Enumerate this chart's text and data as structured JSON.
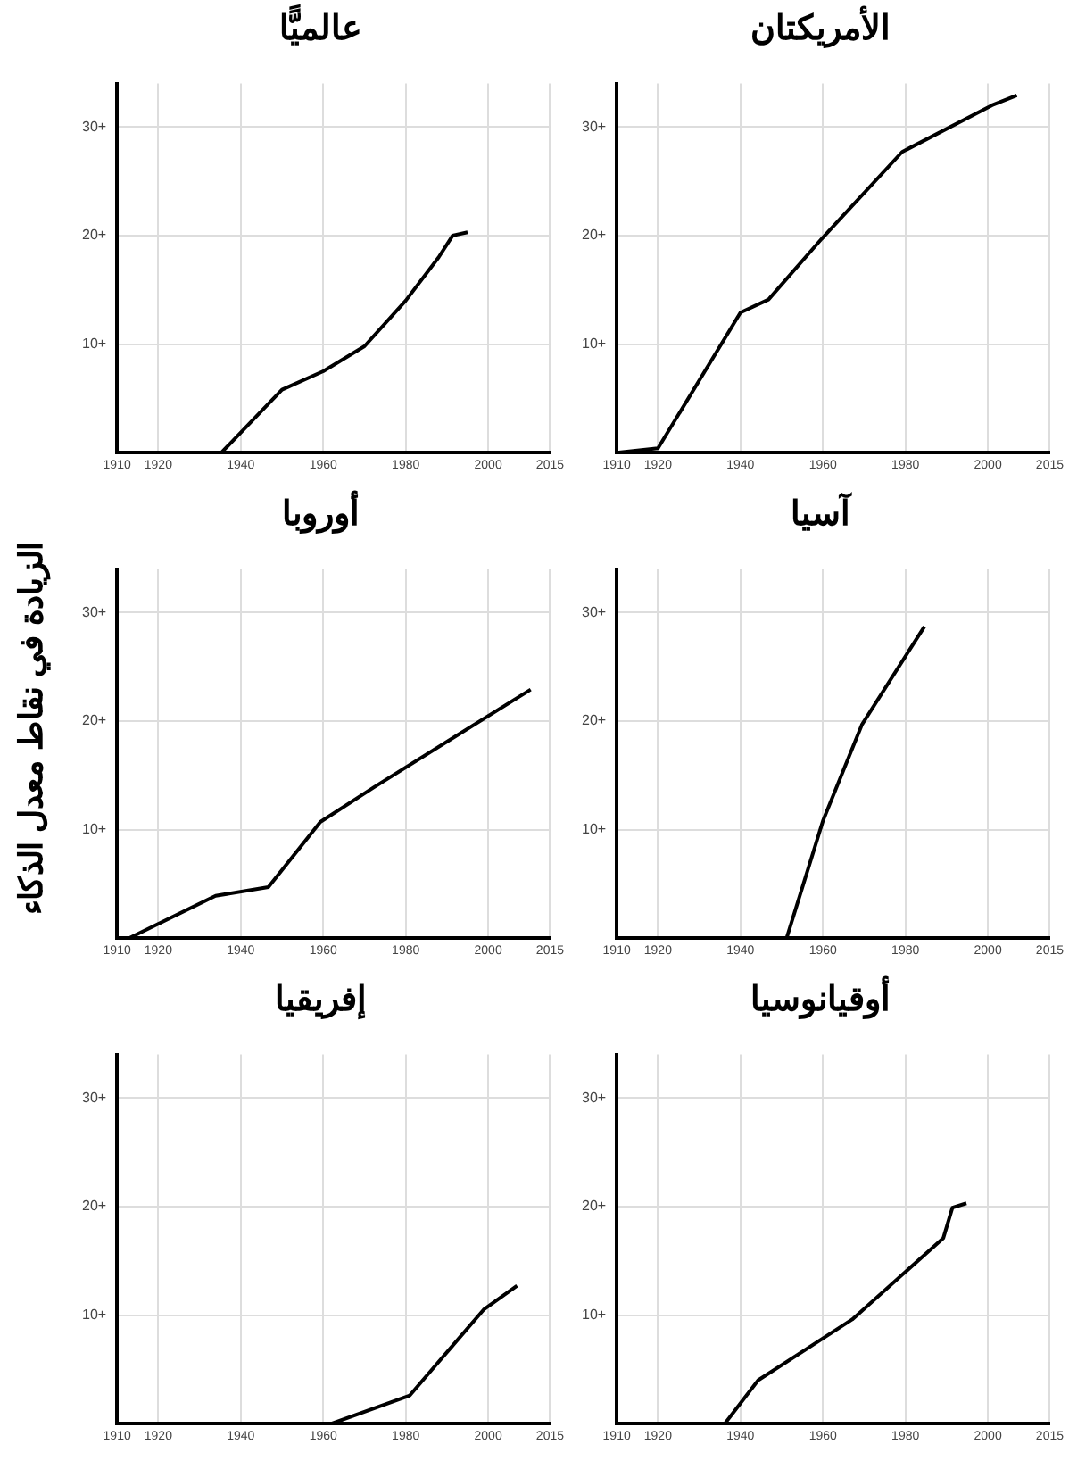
{
  "chart_data": [
    {
      "type": "line",
      "title": "عالميًّا",
      "x": [
        1935.3,
        1950,
        1960,
        1970,
        1980,
        1988,
        1991.4,
        1995
      ],
      "values": [
        0,
        5.8,
        7.5,
        9.8,
        14,
        18,
        20,
        20.3
      ],
      "color": "#000000",
      "xlim": [
        1910,
        2015
      ],
      "ylim": [
        0,
        34
      ],
      "xticks": [
        1910,
        1920,
        1940,
        1960,
        1980,
        2000,
        2015
      ],
      "yticks": [
        {
          "value": 10,
          "label": "+10"
        },
        {
          "value": 20,
          "label": "+20"
        },
        {
          "value": 30,
          "label": "+30"
        }
      ],
      "grid": true,
      "marker": "none"
    },
    {
      "type": "line",
      "title": "الأمريكتان",
      "x": [
        1910,
        1920,
        1940,
        1946.8,
        1959.7,
        1979.2,
        2001,
        2007
      ],
      "values": [
        0,
        0.4,
        12.9,
        14.1,
        19.7,
        27.7,
        32,
        32.9
      ],
      "color": "#000000",
      "xlim": [
        1910,
        2015
      ],
      "ylim": [
        0,
        34
      ],
      "xticks": [
        1910,
        1920,
        1940,
        1960,
        1980,
        2000,
        2015
      ],
      "yticks": [
        {
          "value": 10,
          "label": "+10"
        },
        {
          "value": 20,
          "label": "+20"
        },
        {
          "value": 30,
          "label": "+30"
        }
      ],
      "grid": true,
      "marker": "none"
    },
    {
      "type": "line",
      "title": "أوروبا",
      "ylabel": "الزيادة في نقاط معدل الذكاء",
      "x": [
        1912.9,
        1933.9,
        1946.7,
        1959.3,
        1972.3,
        2010.3
      ],
      "values": [
        0,
        3.9,
        4.7,
        10.7,
        13.9,
        22.9
      ],
      "color": "#000000",
      "xlim": [
        1910,
        2015
      ],
      "ylim": [
        0,
        34
      ],
      "xticks": [
        1910,
        1920,
        1940,
        1960,
        1980,
        2000,
        2015
      ],
      "yticks": [
        {
          "value": 10,
          "label": "+10"
        },
        {
          "value": 20,
          "label": "+20"
        },
        {
          "value": 30,
          "label": "+30"
        }
      ],
      "grid": true,
      "marker": "none"
    },
    {
      "type": "line",
      "title": "آسيا",
      "x": [
        1951.2,
        1960,
        1969.5,
        1984.6
      ],
      "values": [
        0,
        10.8,
        19.7,
        28.7
      ],
      "color": "#000000",
      "xlim": [
        1910,
        2015
      ],
      "ylim": [
        0,
        34
      ],
      "xticks": [
        1910,
        1920,
        1940,
        1960,
        1980,
        2000,
        2015
      ],
      "yticks": [
        {
          "value": 10,
          "label": "+10"
        },
        {
          "value": 20,
          "label": "+20"
        },
        {
          "value": 30,
          "label": "+30"
        }
      ],
      "grid": true,
      "marker": "none"
    },
    {
      "type": "line",
      "title": "إفريقيا",
      "x": [
        1962,
        1981,
        1985.5,
        1998.9,
        2007
      ],
      "values": [
        0,
        2.6,
        4.6,
        10.5,
        12.7
      ],
      "color": "#000000",
      "xlim": [
        1910,
        2015
      ],
      "ylim": [
        0,
        34
      ],
      "xticks": [
        1910,
        1920,
        1940,
        1960,
        1980,
        2000,
        2015
      ],
      "yticks": [
        {
          "value": 10,
          "label": "+10"
        },
        {
          "value": 20,
          "label": "+20"
        },
        {
          "value": 30,
          "label": "+30"
        }
      ],
      "grid": true,
      "marker": "none"
    },
    {
      "type": "line",
      "title": "أوقيانوسيا",
      "x": [
        1936.2,
        1944.3,
        1967.1,
        1989.2,
        1991.4,
        1994.8
      ],
      "values": [
        0,
        4,
        9.6,
        17.1,
        19.9,
        20.3
      ],
      "color": "#000000",
      "xlim": [
        1910,
        2015
      ],
      "ylim": [
        0,
        34
      ],
      "xticks": [
        1910,
        1920,
        1940,
        1960,
        1980,
        2000,
        2015
      ],
      "yticks": [
        {
          "value": 10,
          "label": "+10"
        },
        {
          "value": 20,
          "label": "+20"
        },
        {
          "value": 30,
          "label": "+30"
        }
      ],
      "grid": true,
      "marker": "none"
    }
  ]
}
